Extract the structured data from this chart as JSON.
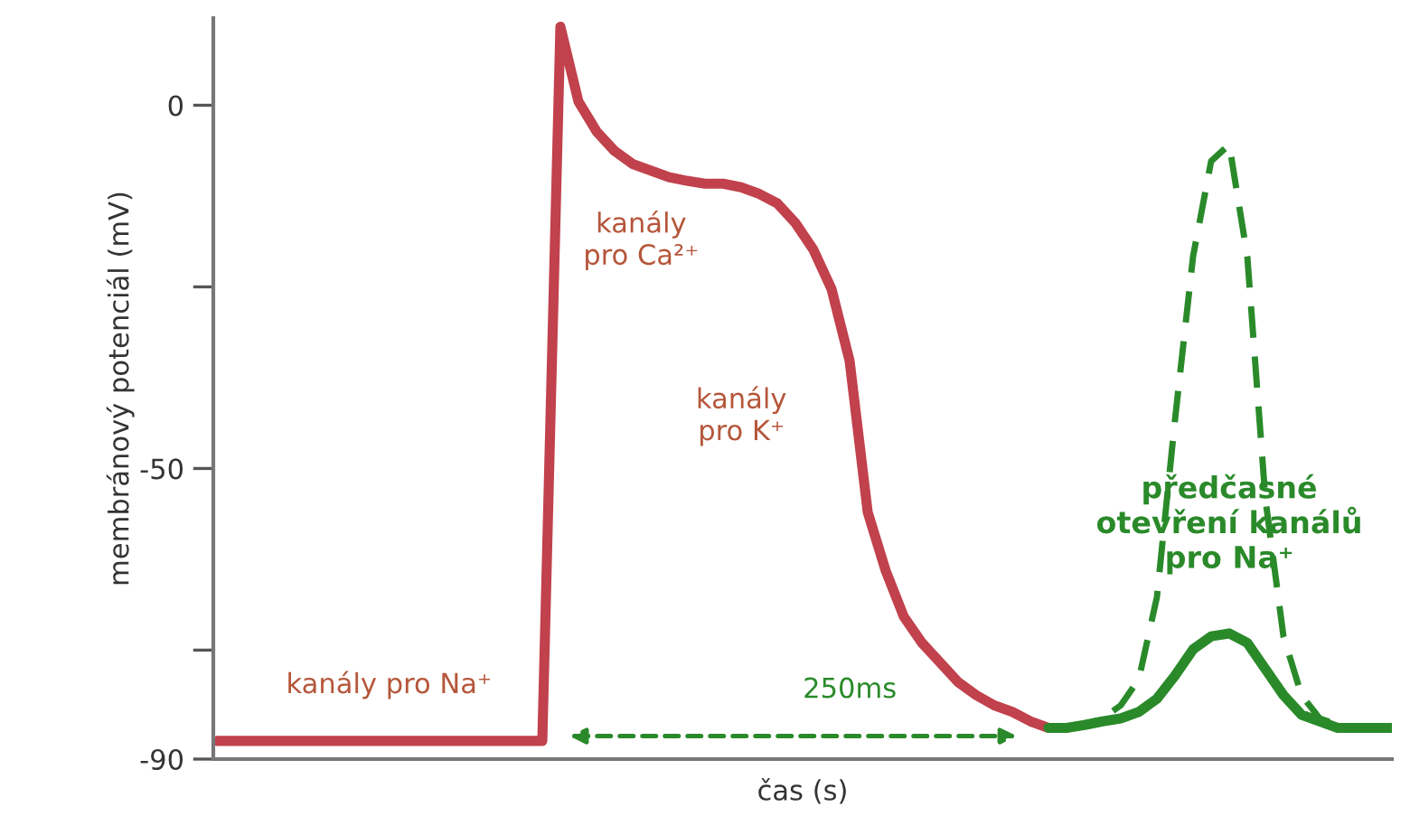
{
  "chart_data": {
    "type": "line",
    "ylabel": "membránový potenciál (mV)",
    "xlabel": "čas (s)",
    "categories": [
      null,
      null,
      null,
      null,
      null,
      null,
      null,
      null,
      null,
      null,
      null,
      null,
      null,
      null,
      null,
      null,
      null,
      null,
      null,
      null,
      null,
      null,
      null,
      null,
      null,
      null,
      null,
      null,
      null,
      null,
      null,
      null,
      null,
      null,
      null,
      null,
      null,
      null,
      null,
      null,
      null,
      null,
      null,
      null,
      null,
      null,
      null,
      null,
      null,
      null,
      null,
      null,
      null,
      null,
      null,
      null,
      null,
      null,
      null,
      null,
      null,
      null,
      null,
      null,
      null,
      null
    ],
    "series": [
      {
        "color": "#c1414c",
        "line_style": "solid",
        "values": [
          -87.5,
          -87.5,
          -87.5,
          -87.5,
          -87.5,
          -87.5,
          -87.5,
          -87.5,
          -87.5,
          -87.5,
          -87.5,
          -87.5,
          -87.5,
          -87.5,
          -87.5,
          -87.5,
          -87.5,
          -87.5,
          -87.5,
          10.8,
          0.5,
          -3.6,
          -6.3,
          -8.1,
          -9,
          -9.9,
          -10.4,
          -10.8,
          -10.8,
          -11.3,
          -12.2,
          -13.5,
          -16.2,
          -19.9,
          -25.3,
          -35.2,
          -56,
          -64.1,
          -70.4,
          -74,
          -76.7,
          -79.4,
          -81.2,
          -82.6,
          -83.5,
          -84.8,
          -85.7,
          null,
          null,
          null,
          null,
          null,
          null,
          null,
          null,
          null,
          null,
          null,
          null,
          null,
          null,
          null,
          null,
          null,
          null,
          null
        ]
      },
      {
        "color": "#2a8a2a",
        "line_style": "solid",
        "values": [
          null,
          null,
          null,
          null,
          null,
          null,
          null,
          null,
          null,
          null,
          null,
          null,
          null,
          null,
          null,
          null,
          null,
          null,
          null,
          null,
          null,
          null,
          null,
          null,
          null,
          null,
          null,
          null,
          null,
          null,
          null,
          null,
          null,
          null,
          null,
          null,
          null,
          null,
          null,
          null,
          null,
          null,
          null,
          null,
          null,
          null,
          -85.7,
          -85.7,
          -85.3,
          -84.8,
          -84.4,
          -83.5,
          -81.7,
          -78.5,
          -74.9,
          -73.1,
          -72.7,
          -74,
          -77.6,
          -81.2,
          -83.9,
          -84.8,
          -85.7,
          -85.7,
          -85.7,
          -85.7
        ]
      },
      {
        "color": "#2a8a2a",
        "line_style": "dashed",
        "values": [
          null,
          null,
          null,
          null,
          null,
          null,
          null,
          null,
          null,
          null,
          null,
          null,
          null,
          null,
          null,
          null,
          null,
          null,
          null,
          null,
          null,
          null,
          null,
          null,
          null,
          null,
          null,
          null,
          null,
          null,
          null,
          null,
          null,
          null,
          null,
          null,
          null,
          null,
          null,
          null,
          null,
          null,
          null,
          null,
          null,
          null,
          null,
          -85.7,
          -85.3,
          -84.4,
          -82.6,
          -79,
          -67.7,
          -43.3,
          -20.8,
          -7.7,
          -5.4,
          -20.8,
          -54.2,
          -73.1,
          -81.2,
          -84.4,
          -85.3,
          -85.7,
          -85.7,
          -85.7
        ]
      }
    ],
    "ylim": [
      -90,
      12
    ],
    "yticks": [
      0,
      {
        "value": -25,
        "label": null
      },
      -50,
      {
        "value": -75,
        "label": null
      },
      -90
    ],
    "tick_labels": "y",
    "annotations": [
      "kanály pro Na⁺",
      "kanály\npro Ca²⁺",
      "kanály\npro K⁺",
      "předčasné\notevření kanálů\npro Na⁺",
      "250ms"
    ]
  }
}
